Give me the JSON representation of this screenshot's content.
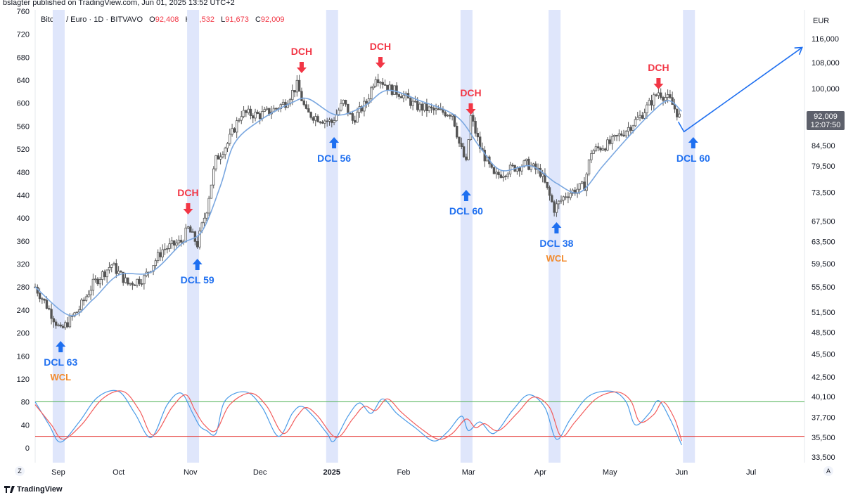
{
  "publisher_line": "bslagter published on TradingView.com, Jun 01, 2025 13:52 UTC+2",
  "symbol": {
    "name": "Bitcoin / Euro · 1D · BITVAVO",
    "o_label": "O",
    "o_value": "92,408",
    "h_label": "H",
    "h_value": "92,532",
    "l_label": "L",
    "l_value": "91,673",
    "c_label": "C",
    "c_value": "92,009"
  },
  "currency": "EUR",
  "price_tag": {
    "value": "92,009",
    "timer": "12:07:50"
  },
  "footer": {
    "logo_text": "TradingView",
    "left_button": "Z",
    "right_button": "A"
  },
  "colors": {
    "candle": "#555555",
    "ma": "#7aa7e0",
    "blue": "#1e6ff0",
    "red": "#f23645",
    "orange": "#f28a2c",
    "band": "#dfe6fb",
    "osc_fast": "#4a9be8",
    "osc_slow": "#f25c5c",
    "level_high": "#4caf50",
    "level_low": "#e53935"
  },
  "chart_data": [
    {
      "type": "candlestick",
      "title": "",
      "left_axis_ticks": [
        "760",
        "720",
        "680",
        "640",
        "600",
        "560",
        "520",
        "480",
        "440",
        "400",
        "360",
        "320",
        "280",
        "240",
        "200",
        "160",
        "120",
        "80",
        "40",
        "0"
      ],
      "right_axis_scale": "log",
      "right_axis_ticks": [
        "116,000",
        "108,000",
        "100,000",
        "84,500",
        "79,500",
        "73,500",
        "67,500",
        "63,500",
        "59,500",
        "55,500",
        "51,500",
        "48,500",
        "45,500",
        "42,500",
        "40,100",
        "37,700",
        "35,500",
        "33,500"
      ],
      "x_ticks": [
        "Sep",
        "Oct",
        "Nov",
        "Dec",
        "2025",
        "Feb",
        "Mar",
        "Apr",
        "May",
        "Jun",
        "Jul"
      ],
      "x_range": [
        "2024-08-26",
        "2025-07-24"
      ],
      "price_range_eur": [
        33500,
        116000
      ],
      "price_path_eur": [
        [
          "2024-08-26",
          55500
        ],
        [
          "2024-08-31",
          52500
        ],
        [
          "2024-09-06",
          48700
        ],
        [
          "2024-09-14",
          52000
        ],
        [
          "2024-09-20",
          56000
        ],
        [
          "2024-09-28",
          59300
        ],
        [
          "2024-10-05",
          56000
        ],
        [
          "2024-10-12",
          57000
        ],
        [
          "2024-10-20",
          62000
        ],
        [
          "2024-10-28",
          63500
        ],
        [
          "2024-10-31",
          66000
        ],
        [
          "2024-11-04",
          63000
        ],
        [
          "2024-11-08",
          70000
        ],
        [
          "2024-11-12",
          81000
        ],
        [
          "2024-11-17",
          85000
        ],
        [
          "2024-11-23",
          93000
        ],
        [
          "2024-12-01",
          92500
        ],
        [
          "2024-12-07",
          94000
        ],
        [
          "2024-12-12",
          96000
        ],
        [
          "2024-12-17",
          101000
        ],
        [
          "2024-12-21",
          93000
        ],
        [
          "2024-12-27",
          91500
        ],
        [
          "2025-01-01",
          90500
        ],
        [
          "2025-01-06",
          96000
        ],
        [
          "2025-01-10",
          91000
        ],
        [
          "2025-01-16",
          96000
        ],
        [
          "2025-01-20",
          104000
        ],
        [
          "2025-01-26",
          100000
        ],
        [
          "2025-01-31",
          98500
        ],
        [
          "2025-02-06",
          95000
        ],
        [
          "2025-02-15",
          93500
        ],
        [
          "2025-02-22",
          93000
        ],
        [
          "2025-02-25",
          85000
        ],
        [
          "2025-02-28",
          80000
        ],
        [
          "2025-03-02",
          92000
        ],
        [
          "2025-03-06",
          84000
        ],
        [
          "2025-03-12",
          77000
        ],
        [
          "2025-03-20",
          79000
        ],
        [
          "2025-03-26",
          80000
        ],
        [
          "2025-04-01",
          78000
        ],
        [
          "2025-04-07",
          70000
        ],
        [
          "2025-04-12",
          73000
        ],
        [
          "2025-04-20",
          75000
        ],
        [
          "2025-04-23",
          83000
        ],
        [
          "2025-05-01",
          85000
        ],
        [
          "2025-05-08",
          88500
        ],
        [
          "2025-05-14",
          92000
        ],
        [
          "2025-05-22",
          99000
        ],
        [
          "2025-05-27",
          96500
        ],
        [
          "2025-05-31",
          92009
        ]
      ],
      "moving_average_eur": [
        [
          "2024-08-26",
          55500
        ],
        [
          "2024-09-10",
          51000
        ],
        [
          "2024-09-20",
          53500
        ],
        [
          "2024-10-01",
          57500
        ],
        [
          "2024-10-15",
          58000
        ],
        [
          "2024-10-28",
          63000
        ],
        [
          "2024-11-06",
          65500
        ],
        [
          "2024-11-14",
          75000
        ],
        [
          "2024-11-20",
          85000
        ],
        [
          "2024-12-01",
          91000
        ],
        [
          "2024-12-15",
          96000
        ],
        [
          "2024-12-22",
          97000
        ],
        [
          "2025-01-03",
          92500
        ],
        [
          "2025-01-15",
          95000
        ],
        [
          "2025-01-25",
          99500
        ],
        [
          "2025-02-08",
          96500
        ],
        [
          "2025-02-24",
          92000
        ],
        [
          "2025-03-06",
          84000
        ],
        [
          "2025-03-15",
          78500
        ],
        [
          "2025-03-28",
          79500
        ],
        [
          "2025-04-08",
          75500
        ],
        [
          "2025-04-18",
          73500
        ],
        [
          "2025-04-28",
          79500
        ],
        [
          "2025-05-08",
          86000
        ],
        [
          "2025-05-18",
          92500
        ],
        [
          "2025-05-26",
          96500
        ],
        [
          "2025-06-01",
          93500
        ]
      ],
      "projection_eur": [
        [
          "2025-06-02",
          88000
        ],
        [
          "2025-07-23",
          113000
        ]
      ],
      "cycle_band_dates": [
        "2024-09-05",
        "2024-11-02",
        "2025-01-01",
        "2025-02-28",
        "2025-04-07",
        "2025-06-04"
      ],
      "annotations": [
        {
          "label": "DCL 63",
          "sub": "WCL",
          "date": "2024-09-06",
          "kind": "low"
        },
        {
          "label": "DCH",
          "date": "2024-10-31",
          "kind": "high"
        },
        {
          "label": "DCL 59",
          "date": "2024-11-04",
          "kind": "low"
        },
        {
          "label": "DCH",
          "date": "2024-12-19",
          "kind": "high"
        },
        {
          "label": "DCL 56",
          "date": "2025-01-02",
          "kind": "low"
        },
        {
          "label": "DCH",
          "date": "2025-01-22",
          "kind": "high"
        },
        {
          "label": "DCH",
          "date": "2025-03-02",
          "kind": "high"
        },
        {
          "label": "DCL 60",
          "date": "2025-02-28",
          "kind": "low"
        },
        {
          "label": "DCL 38",
          "sub": "WCL",
          "date": "2025-04-08",
          "kind": "low"
        },
        {
          "label": "DCH",
          "date": "2025-05-22",
          "kind": "high"
        },
        {
          "label": "DCL 60",
          "date": "2025-06-06",
          "kind": "low"
        }
      ]
    },
    {
      "type": "line",
      "title": "",
      "y_range": [
        0,
        100
      ],
      "levels": [
        80,
        20
      ],
      "series": [
        {
          "values": [
            [
              "2024-08-26",
              80
            ],
            [
              "2024-09-01",
              40
            ],
            [
              "2024-09-06",
              10
            ],
            [
              "2024-09-14",
              45
            ],
            [
              "2024-09-22",
              88
            ],
            [
              "2024-10-01",
              98
            ],
            [
              "2024-10-08",
              60
            ],
            [
              "2024-10-15",
              18
            ],
            [
              "2024-10-22",
              75
            ],
            [
              "2024-10-28",
              95
            ],
            [
              "2024-11-02",
              60
            ],
            [
              "2024-11-05",
              38
            ],
            [
              "2024-11-08",
              30
            ],
            [
              "2024-11-12",
              25
            ],
            [
              "2024-11-16",
              82
            ],
            [
              "2024-11-25",
              97
            ],
            [
              "2024-12-02",
              70
            ],
            [
              "2024-12-09",
              20
            ],
            [
              "2024-12-15",
              60
            ],
            [
              "2024-12-19",
              72
            ],
            [
              "2024-12-24",
              55
            ],
            [
              "2024-12-30",
              25
            ],
            [
              "2025-01-02",
              12
            ],
            [
              "2025-01-08",
              55
            ],
            [
              "2025-01-13",
              78
            ],
            [
              "2025-01-18",
              60
            ],
            [
              "2025-01-23",
              85
            ],
            [
              "2025-01-29",
              60
            ],
            [
              "2025-02-06",
              35
            ],
            [
              "2025-02-14",
              12
            ],
            [
              "2025-02-20",
              28
            ],
            [
              "2025-02-26",
              55
            ],
            [
              "2025-03-01",
              30
            ],
            [
              "2025-03-06",
              45
            ],
            [
              "2025-03-12",
              25
            ],
            [
              "2025-03-20",
              65
            ],
            [
              "2025-03-27",
              92
            ],
            [
              "2025-04-03",
              70
            ],
            [
              "2025-04-08",
              15
            ],
            [
              "2025-04-14",
              50
            ],
            [
              "2025-04-22",
              90
            ],
            [
              "2025-05-02",
              98
            ],
            [
              "2025-05-08",
              80
            ],
            [
              "2025-05-12",
              40
            ],
            [
              "2025-05-18",
              60
            ],
            [
              "2025-05-22",
              82
            ],
            [
              "2025-05-27",
              50
            ],
            [
              "2025-06-01",
              5
            ]
          ]
        },
        {
          "values": [
            [
              "2024-08-26",
              75
            ],
            [
              "2024-09-02",
              40
            ],
            [
              "2024-09-07",
              15
            ],
            [
              "2024-09-15",
              40
            ],
            [
              "2024-09-24",
              85
            ],
            [
              "2024-10-03",
              98
            ],
            [
              "2024-10-10",
              65
            ],
            [
              "2024-10-16",
              22
            ],
            [
              "2024-10-24",
              70
            ],
            [
              "2024-10-30",
              92
            ],
            [
              "2024-11-03",
              65
            ],
            [
              "2024-11-07",
              40
            ],
            [
              "2024-11-12",
              30
            ],
            [
              "2024-11-18",
              75
            ],
            [
              "2024-11-27",
              95
            ],
            [
              "2024-12-04",
              72
            ],
            [
              "2024-12-11",
              25
            ],
            [
              "2024-12-17",
              55
            ],
            [
              "2024-12-21",
              70
            ],
            [
              "2024-12-26",
              55
            ],
            [
              "2025-01-03",
              18
            ],
            [
              "2025-01-10",
              50
            ],
            [
              "2025-01-15",
              72
            ],
            [
              "2025-01-20",
              65
            ],
            [
              "2025-01-25",
              85
            ],
            [
              "2025-01-31",
              62
            ],
            [
              "2025-02-08",
              35
            ],
            [
              "2025-02-16",
              15
            ],
            [
              "2025-02-22",
              25
            ],
            [
              "2025-02-28",
              50
            ],
            [
              "2025-03-04",
              35
            ],
            [
              "2025-03-08",
              42
            ],
            [
              "2025-03-14",
              30
            ],
            [
              "2025-03-22",
              60
            ],
            [
              "2025-03-29",
              88
            ],
            [
              "2025-04-05",
              70
            ],
            [
              "2025-04-10",
              20
            ],
            [
              "2025-04-16",
              45
            ],
            [
              "2025-04-25",
              85
            ],
            [
              "2025-05-04",
              97
            ],
            [
              "2025-05-10",
              82
            ],
            [
              "2025-05-14",
              45
            ],
            [
              "2025-05-20",
              58
            ],
            [
              "2025-05-24",
              80
            ],
            [
              "2025-05-29",
              50
            ],
            [
              "2025-06-01",
              12
            ]
          ]
        }
      ]
    }
  ]
}
